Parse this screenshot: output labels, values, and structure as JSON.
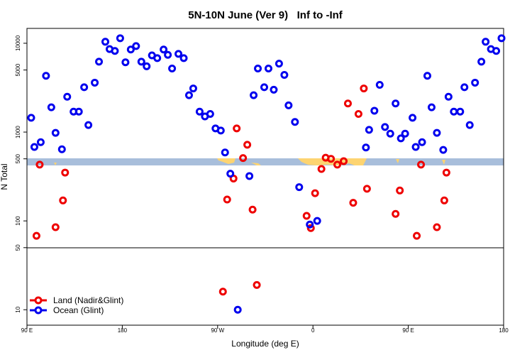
{
  "chart_data": {
    "type": "scatter",
    "title": "5N-10N June (Ver 9)   Inf to -Inf",
    "x_label": "Longitude (deg E)",
    "y_label": "N Total",
    "y_log": true,
    "legend": "lower left",
    "xlim": [
      90,
      540
    ],
    "ylim": [
      6.7,
      14700
    ],
    "xticks": [
      {
        "value": 90,
        "label": "90 E"
      },
      180,
      {
        "value": 270,
        "label": "90 W"
      },
      {
        "value": 360,
        "label": "0"
      },
      {
        "value": 450,
        "label": "90 E"
      },
      {
        "value": 540,
        "label": "180"
      }
    ],
    "yticks": [
      10,
      50,
      100,
      500,
      1000,
      5000,
      10000
    ],
    "series": [
      {
        "name": "Land (Nadir&Glint)",
        "color": "#ee0000",
        "x": [
          99,
          102,
          117,
          124,
          126,
          275,
          279,
          285,
          288,
          294,
          298,
          303,
          307,
          354,
          358,
          362,
          368,
          372,
          377,
          383,
          389,
          393,
          398,
          403,
          408,
          411,
          438,
          442,
          458,
          462,
          477,
          484,
          486
        ],
        "values": [
          68,
          430,
          85,
          170,
          350,
          16,
          174,
          300,
          1100,
          510,
          720,
          134,
          19,
          114,
          83,
          205,
          384,
          515,
          500,
          430,
          470,
          2100,
          160,
          1600,
          3100,
          230,
          120,
          220,
          68,
          430,
          85,
          170,
          350
        ]
      },
      {
        "name": "Ocean (Glint)",
        "color": "#0000ee",
        "x": [
          94,
          97,
          103,
          108,
          113,
          117,
          123,
          128,
          134,
          139,
          144,
          148,
          154,
          158,
          164,
          168,
          173,
          178,
          183,
          188,
          193,
          198,
          203,
          208,
          213,
          219,
          223,
          227,
          233,
          238,
          243,
          247,
          253,
          258,
          263,
          268,
          273,
          277,
          282,
          289,
          300,
          304,
          308,
          314,
          318,
          323,
          328,
          333,
          337,
          343,
          347,
          357,
          364,
          410,
          413,
          418,
          423,
          428,
          433,
          438,
          443,
          447,
          454,
          457,
          463,
          468,
          472,
          477,
          483,
          488,
          493,
          499,
          503,
          508,
          513,
          519,
          523,
          528,
          533,
          538
        ],
        "values": [
          1450,
          680,
          770,
          4300,
          1900,
          980,
          640,
          2500,
          1700,
          1700,
          3200,
          1200,
          3600,
          6200,
          10400,
          8600,
          8200,
          11400,
          6100,
          8500,
          9300,
          6200,
          5500,
          7300,
          6800,
          8500,
          7400,
          5200,
          7600,
          6800,
          2600,
          3100,
          1700,
          1500,
          1600,
          1100,
          1040,
          590,
          340,
          10,
          320,
          2600,
          5200,
          3200,
          5200,
          3000,
          5900,
          4400,
          2000,
          1300,
          240,
          91,
          100,
          670,
          1060,
          1740,
          3400,
          1140,
          960,
          2100,
          850,
          960,
          1450,
          680,
          770,
          4300,
          1900,
          980,
          630,
          2500,
          1700,
          1700,
          3200,
          1200,
          3600,
          6200,
          10400,
          8600,
          8200,
          11400
        ]
      }
    ]
  }
}
